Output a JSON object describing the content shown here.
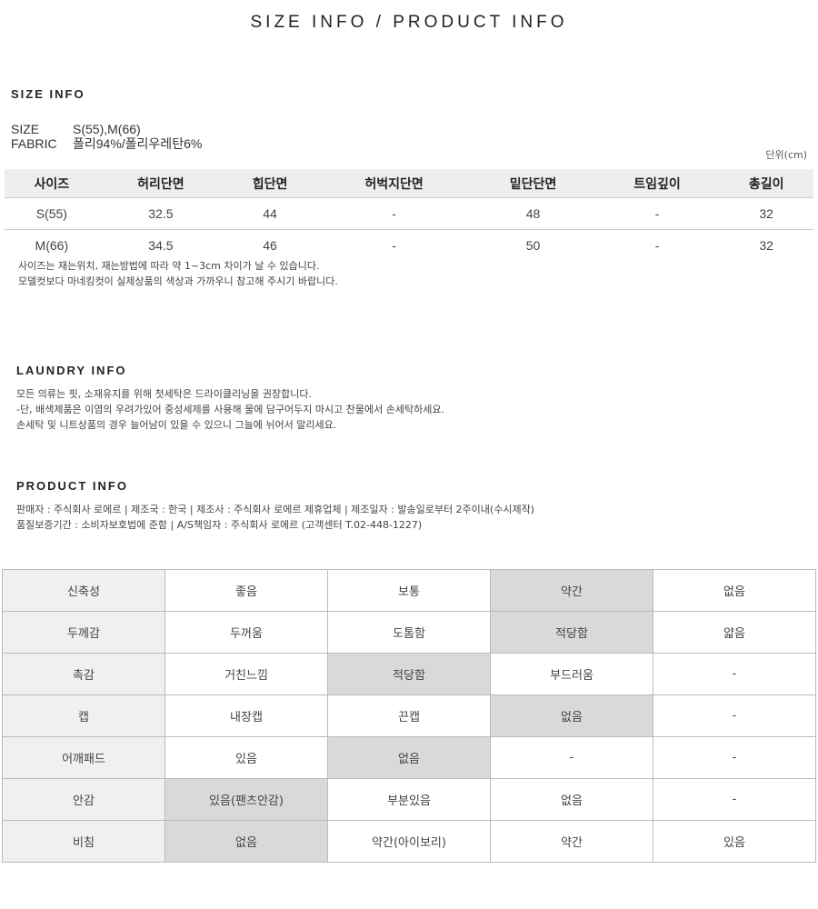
{
  "title": "SIZE INFO / PRODUCT INFO",
  "size_info": {
    "heading": "SIZE INFO",
    "size_label": "SIZE",
    "size_value": "S(55),M(66)",
    "fabric_label": "FABRIC",
    "fabric_value": "폴리94%/폴리우레탄6%",
    "unit": "단위(cm)",
    "columns": [
      "사이즈",
      "허리단면",
      "힙단면",
      "허벅지단면",
      "밑단단면",
      "트임깊이",
      "총길이"
    ],
    "rows": [
      [
        "S(55)",
        "32.5",
        "44",
        "-",
        "48",
        "-",
        "32"
      ],
      [
        "M(66)",
        "34.5",
        "46",
        "-",
        "50",
        "-",
        "32"
      ]
    ],
    "notes": [
      "사이즈는 재는위치, 재는방법에 따라 약 1~3cm 차이가 날 수 있습니다.",
      "모델컷보다 마네킹컷이 실제상품의 색상과 가까우니 참고해 주시기 바랍니다."
    ]
  },
  "laundry": {
    "heading": "LAUNDRY INFO",
    "lines": [
      "모든 의류는 핏, 소재유지를 위해 첫세탁은 드라이클리닝을 권장합니다.",
      "-단, 배색제품은 이염의 우려가있어 중성세제를 사용해 물에 담구어두지 마시고 찬물에서 손세탁하세요.",
      "손세탁 및 니트상품의 경우 늘어남이 있을 수 있으니 그늘에 뉘어서 말리세요."
    ]
  },
  "product": {
    "heading": "PRODUCT INFO",
    "lines": [
      "판매자 : 주식회사 로에르 | 제조국 : 한국 | 제조사 : 주식회사 로에르 제휴업체 | 제조일자 : 발송일로부터 2주이내(수시제작)",
      "품질보증기간 : 소비자보호법에 준함 | A/S책임자 : 주식회사 로에르 (고객센터 T.02-448-1227)"
    ]
  },
  "attributes": [
    {
      "label": "신축성",
      "options": [
        "좋음",
        "보통",
        "약간",
        "없음"
      ],
      "selected": 2
    },
    {
      "label": "두께감",
      "options": [
        "두꺼움",
        "도톰함",
        "적당함",
        "얇음"
      ],
      "selected": 2
    },
    {
      "label": "촉감",
      "options": [
        "거친느낌",
        "적당함",
        "부드러움",
        "-"
      ],
      "selected": 1
    },
    {
      "label": "캡",
      "options": [
        "내장캡",
        "끈캡",
        "없음",
        "-"
      ],
      "selected": 2
    },
    {
      "label": "어깨패드",
      "options": [
        "있음",
        "없음",
        "-",
        "-"
      ],
      "selected": 1
    },
    {
      "label": "안감",
      "options": [
        "있음(팬츠안감)",
        "부분있음",
        "없음",
        "-"
      ],
      "selected": 0
    },
    {
      "label": "비침",
      "options": [
        "없음",
        "약간(아이보리)",
        "약간",
        "있음"
      ],
      "selected": 0
    }
  ],
  "colors": {
    "header_bg": "#eeeeee",
    "label_bg": "#f0f0f0",
    "selected_bg": "#d9d9d9"
  }
}
